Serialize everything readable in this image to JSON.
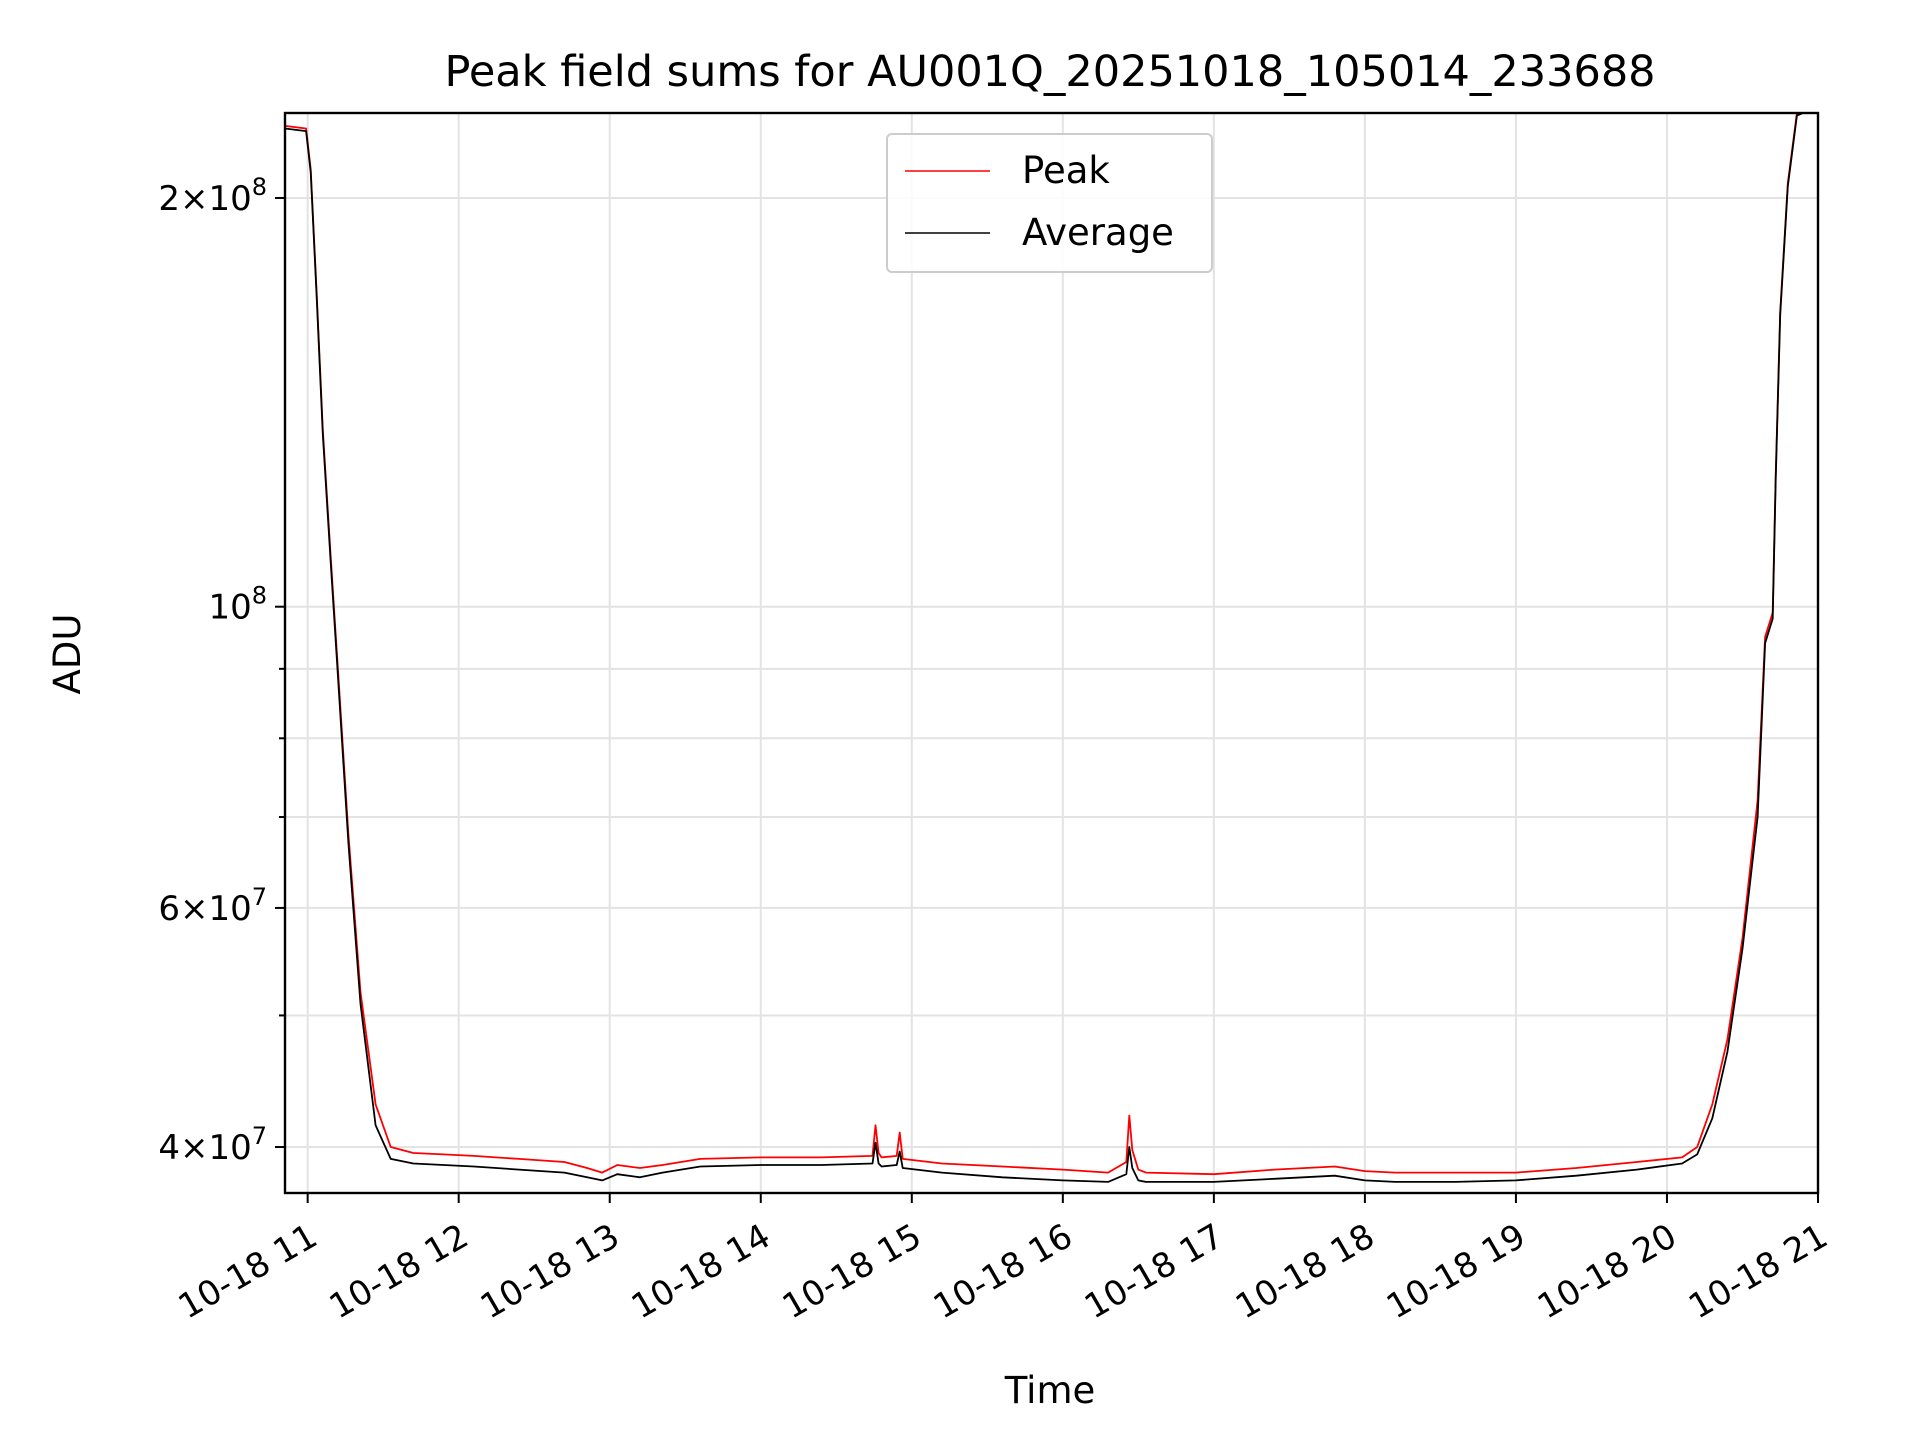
{
  "chart_data": {
    "type": "line",
    "title": "Peak field sums for AU001Q_20251018_105014_233688",
    "xlabel": "Time",
    "ylabel": "ADU",
    "yscale": "log",
    "xlim": [
      10.85,
      21.0
    ],
    "ylim": [
      37000000,
      231000000
    ],
    "grid": true,
    "legend_position": "upper center",
    "x_unit": "hours since 10-18 00:00",
    "x_ticks": [
      {
        "value": 11,
        "label": "10-18 11"
      },
      {
        "value": 12,
        "label": "10-18 12"
      },
      {
        "value": 13,
        "label": "10-18 13"
      },
      {
        "value": 14,
        "label": "10-18 14"
      },
      {
        "value": 15,
        "label": "10-18 15"
      },
      {
        "value": 16,
        "label": "10-18 16"
      },
      {
        "value": 17,
        "label": "10-18 17"
      },
      {
        "value": 18,
        "label": "10-18 18"
      },
      {
        "value": 19,
        "label": "10-18 19"
      },
      {
        "value": 20,
        "label": "10-18 20"
      },
      {
        "value": 21,
        "label": "10-18 21"
      }
    ],
    "y_ticks_major": [
      {
        "value": 40000000,
        "mantissa": "4",
        "exponent": "7"
      },
      {
        "value": 60000000,
        "mantissa": "6",
        "exponent": "7"
      },
      {
        "value": 100000000,
        "mantissa": "",
        "exponent": "8"
      },
      {
        "value": 200000000,
        "mantissa": "2",
        "exponent": "8"
      }
    ],
    "y_ticks_minor": [
      50000000,
      70000000,
      80000000,
      90000000
    ],
    "series": [
      {
        "name": "Peak",
        "color": "#ff0000",
        "x": [
          10.85,
          10.99,
          11.02,
          11.06,
          11.1,
          11.15,
          11.2,
          11.27,
          11.35,
          11.45,
          11.55,
          11.7,
          11.9,
          12.1,
          12.4,
          12.7,
          12.85,
          12.95,
          13.05,
          13.2,
          13.35,
          13.6,
          14.0,
          14.4,
          14.74,
          14.76,
          14.78,
          14.8,
          14.9,
          14.92,
          14.94,
          15.2,
          15.6,
          16.0,
          16.3,
          16.42,
          16.44,
          16.46,
          16.5,
          16.55,
          17.0,
          17.4,
          17.8,
          18.0,
          18.2,
          18.6,
          19.0,
          19.4,
          19.8,
          20.1,
          20.2,
          20.3,
          20.4,
          20.5,
          20.6,
          20.65,
          20.7,
          20.72,
          20.75,
          20.8,
          20.86,
          20.9,
          21.0
        ],
        "values": [
          226000000,
          225000000,
          210000000,
          170000000,
          135000000,
          110000000,
          90000000,
          68000000,
          52000000,
          43000000,
          40000000,
          39600000,
          39500000,
          39400000,
          39200000,
          39000000,
          38600000,
          38300000,
          38800000,
          38600000,
          38800000,
          39200000,
          39300000,
          39300000,
          39400000,
          41500000,
          39600000,
          39300000,
          39400000,
          41000000,
          39200000,
          38900000,
          38700000,
          38500000,
          38300000,
          39000000,
          42200000,
          39800000,
          38500000,
          38300000,
          38200000,
          38500000,
          38700000,
          38400000,
          38300000,
          38300000,
          38300000,
          38600000,
          39000000,
          39300000,
          40000000,
          43000000,
          48000000,
          57000000,
          72000000,
          95000000,
          99000000,
          125000000,
          165000000,
          205000000,
          231000000,
          232000000,
          232000000
        ]
      },
      {
        "name": "Average",
        "color": "#000000",
        "x": [
          10.85,
          10.99,
          11.02,
          11.06,
          11.1,
          11.15,
          11.2,
          11.27,
          11.35,
          11.45,
          11.55,
          11.7,
          11.9,
          12.1,
          12.4,
          12.7,
          12.85,
          12.95,
          13.05,
          13.2,
          13.35,
          13.6,
          14.0,
          14.4,
          14.74,
          14.76,
          14.78,
          14.8,
          14.9,
          14.92,
          14.94,
          15.2,
          15.6,
          16.0,
          16.3,
          16.42,
          16.44,
          16.46,
          16.5,
          16.55,
          17.0,
          17.4,
          17.8,
          18.0,
          18.2,
          18.6,
          19.0,
          19.4,
          19.8,
          20.1,
          20.2,
          20.3,
          20.4,
          20.5,
          20.6,
          20.65,
          20.7,
          20.72,
          20.75,
          20.8,
          20.86,
          20.9,
          21.0
        ],
        "values": [
          225000000,
          224000000,
          209000000,
          169000000,
          134000000,
          109000000,
          89000000,
          67000000,
          51000000,
          41500000,
          39200000,
          38900000,
          38800000,
          38700000,
          38500000,
          38300000,
          38000000,
          37800000,
          38200000,
          38000000,
          38300000,
          38700000,
          38800000,
          38800000,
          38900000,
          40300000,
          38900000,
          38700000,
          38800000,
          39700000,
          38600000,
          38300000,
          38000000,
          37800000,
          37700000,
          38200000,
          40000000,
          38600000,
          37800000,
          37700000,
          37700000,
          37900000,
          38100000,
          37800000,
          37700000,
          37700000,
          37800000,
          38100000,
          38500000,
          38900000,
          39500000,
          42000000,
          47000000,
          56000000,
          70000000,
          94000000,
          98000000,
          124000000,
          164000000,
          204000000,
          230000000,
          231000000,
          231000000
        ]
      }
    ]
  }
}
